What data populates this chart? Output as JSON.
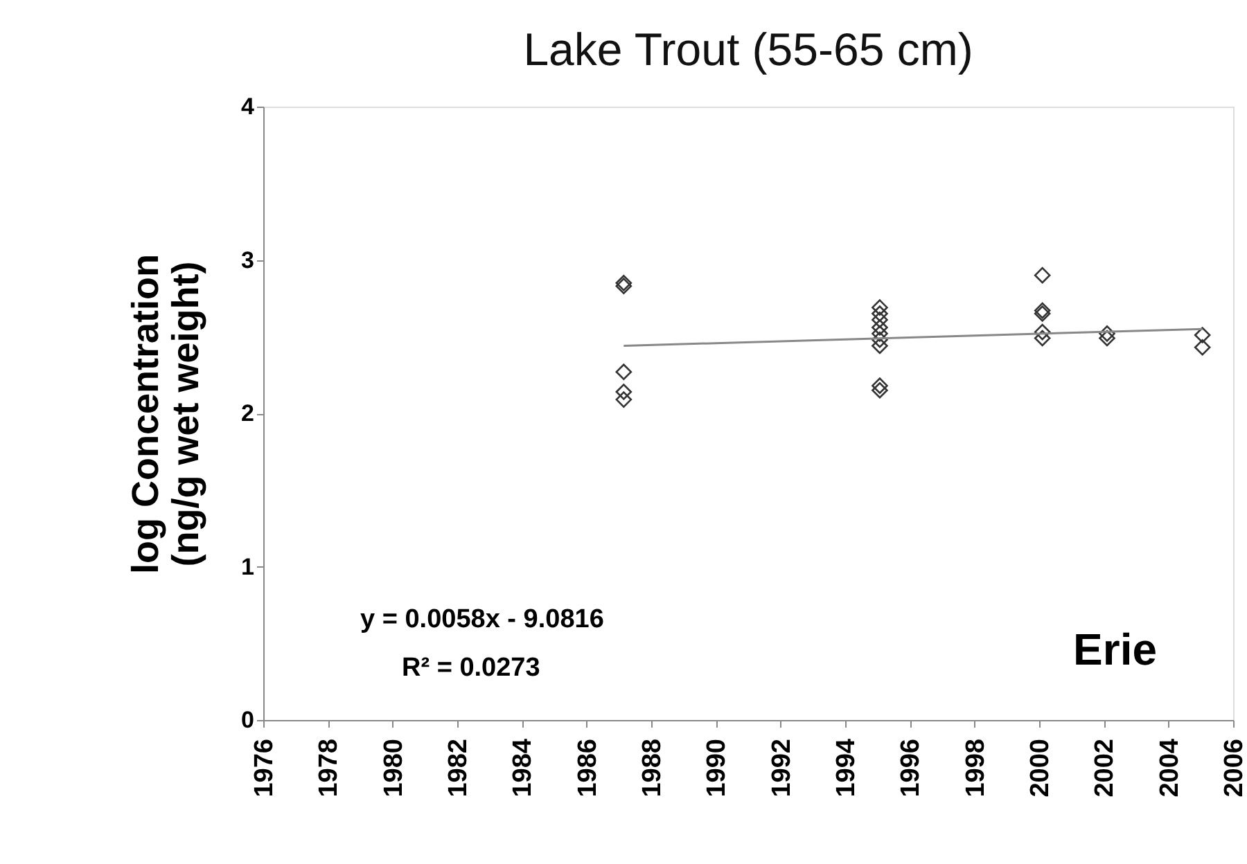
{
  "chart_data": {
    "type": "scatter",
    "title": "Lake Trout (55-65 cm)",
    "ylabel": "log Concentration\n(ng/g wet weight)",
    "xlim": [
      1976,
      2006
    ],
    "xticks": [
      1976,
      1978,
      1980,
      1982,
      1984,
      1986,
      1988,
      1990,
      1992,
      1994,
      1996,
      1998,
      2000,
      2002,
      2004,
      2006
    ],
    "ylim": [
      0,
      4
    ],
    "yticks": [
      0,
      1,
      2,
      3,
      4
    ],
    "grid": false,
    "series": [
      {
        "marker": "diamond",
        "color": "#333333",
        "x": [
          1987.15,
          1987.15,
          1987.15,
          1987.15,
          1987.15,
          1995.07,
          1995.07,
          1995.07,
          1995.07,
          1995.07,
          1995.07,
          1995.07,
          1995.07,
          1995.07,
          2000.1,
          2000.1,
          2000.1,
          2000.1,
          2000.1,
          2002.1,
          2002.1,
          2005.05,
          2005.05
        ],
        "values": [
          2.85,
          2.83,
          2.27,
          2.14,
          2.09,
          2.69,
          2.65,
          2.61,
          2.56,
          2.52,
          2.48,
          2.44,
          2.18,
          2.15,
          2.9,
          2.67,
          2.65,
          2.53,
          2.49,
          2.52,
          2.49,
          2.51,
          2.43
        ]
      },
      {
        "type": "line",
        "marker": "none",
        "color": "#888888",
        "x": [
          1987.15,
          2005.05
        ],
        "values": [
          2.44,
          2.55
        ]
      }
    ],
    "annotations": [
      "y = 0.0058x - 9.0816",
      "R² = 0.0273",
      "Erie"
    ]
  }
}
